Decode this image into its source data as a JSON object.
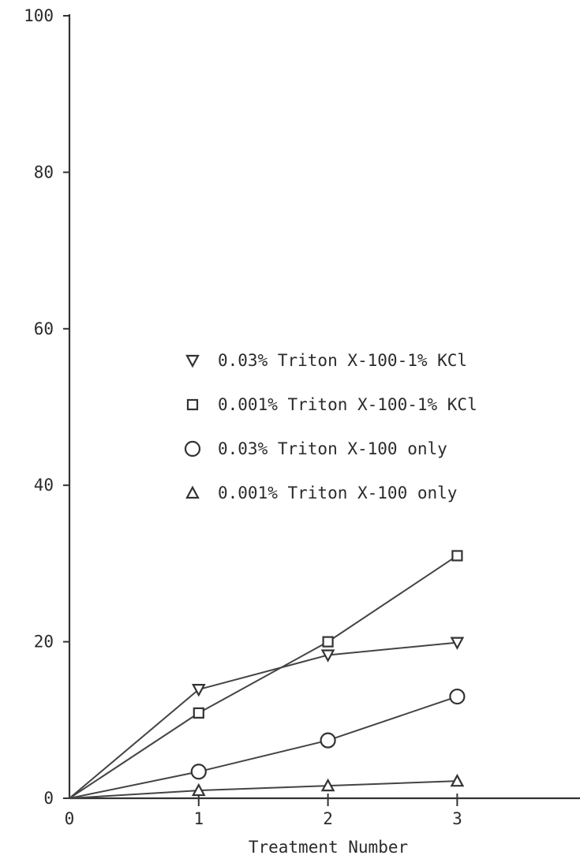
{
  "chart_data": {
    "type": "line",
    "title": "",
    "xlabel": "Treatment Number",
    "ylabel": "",
    "x": [
      0,
      1,
      2,
      3
    ],
    "x_ticks": [
      "0",
      "1",
      "2",
      "3"
    ],
    "y_ticks": [
      "0",
      "20",
      "40",
      "60",
      "80",
      "100"
    ],
    "xlim": [
      0,
      3.95
    ],
    "ylim": [
      0,
      100
    ],
    "grid": false,
    "legend_position": "center",
    "series": [
      {
        "name": "0.03% Triton X-100-1% KCl",
        "marker": "triangle-down",
        "values": [
          0,
          13.9,
          18.3,
          19.9
        ]
      },
      {
        "name": "0.001% Triton X-100-1% KCl",
        "marker": "square",
        "values": [
          0,
          10.9,
          20.0,
          31.0
        ]
      },
      {
        "name": "0.03% Triton X-100 only",
        "marker": "circle",
        "values": [
          0,
          3.4,
          7.4,
          13.0
        ]
      },
      {
        "name": "0.001% Triton X-100 only",
        "marker": "triangle-up",
        "values": [
          0,
          1.0,
          1.6,
          2.2
        ]
      }
    ]
  }
}
